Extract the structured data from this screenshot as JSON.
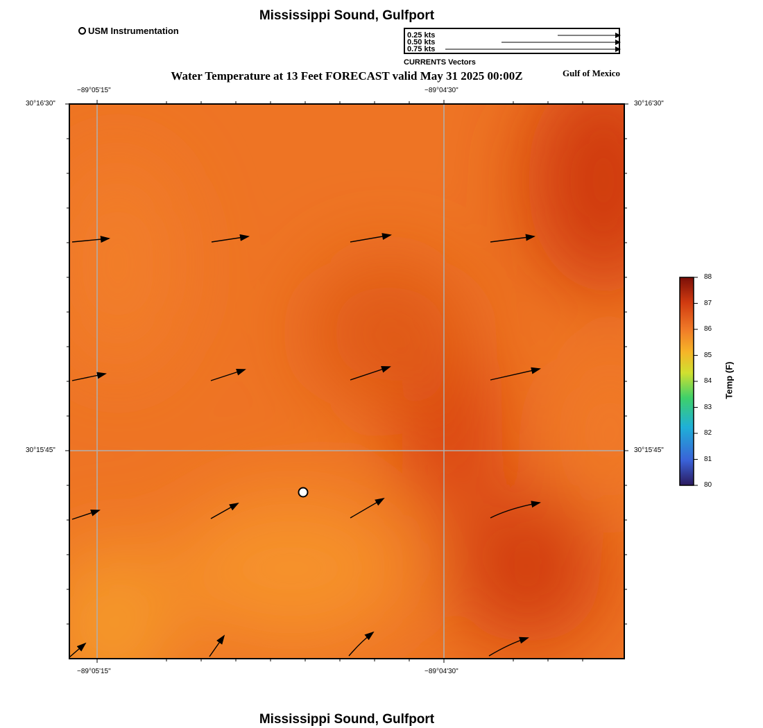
{
  "header": {
    "title": "Mississippi Sound, Gulfport",
    "subtitle": "Water Temperature at 13 Feet FORECAST valid May 31 2025 00:00Z",
    "region": "Gulf of Mexico",
    "footer_title": "Mississippi Sound, Gulfport"
  },
  "legend": {
    "station_label": "USM Instrumentation",
    "vector_scale": [
      "0.25 kts",
      "0.50 kts",
      "0.75 kts"
    ],
    "vector_caption": "CURRENTS Vectors"
  },
  "map": {
    "lon_labels": [
      "−89°05'15\"",
      "−89°04'30\""
    ],
    "lat_labels": [
      "30°16'30\"",
      "30°15'45\""
    ],
    "base_color": "#f07a28",
    "hot_color": "#d03a08"
  },
  "colorbar": {
    "title": "Temp (F)",
    "ticks": [
      "88",
      "87",
      "86",
      "85",
      "84",
      "83",
      "82",
      "81",
      "80"
    ]
  }
}
